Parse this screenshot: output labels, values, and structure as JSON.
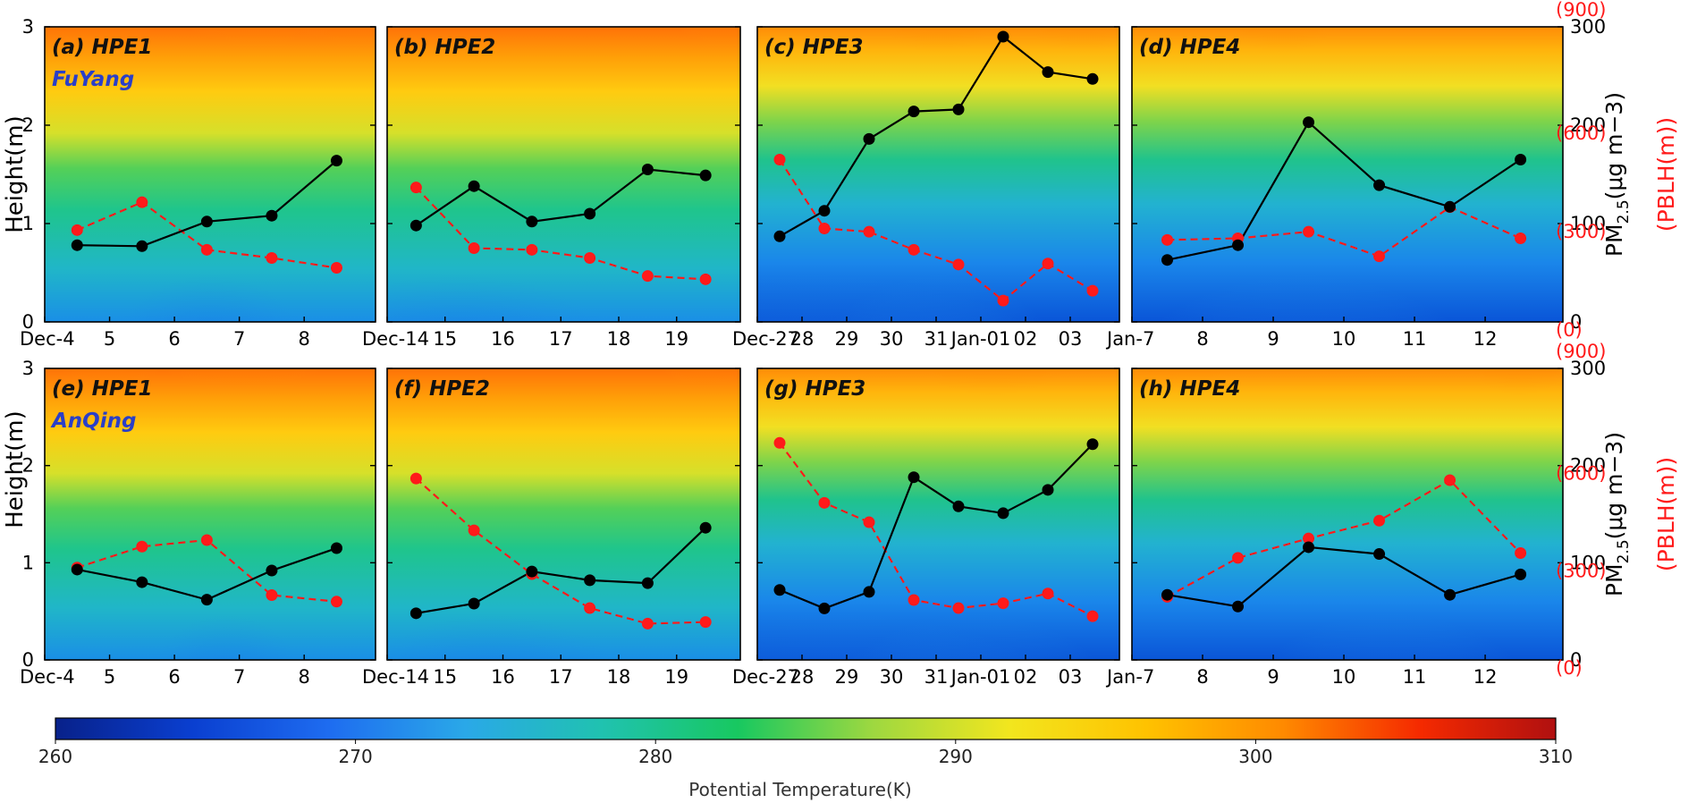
{
  "chart_data": {
    "type": "line",
    "colorbar": {
      "label": "Potential Temperature(K)",
      "min": 260,
      "max": 310,
      "ticks": [
        "260",
        "270",
        "280",
        "290",
        "300",
        "310"
      ],
      "colors": [
        "#08218a",
        "#0a3fd0",
        "#1e6cf0",
        "#2aa8e8",
        "#20c2b0",
        "#18c860",
        "#9ed840",
        "#f2e61e",
        "#ffc200",
        "#ff8a00",
        "#f52a00",
        "#b01010"
      ]
    },
    "left_axis": {
      "label": "Height(m)",
      "ticks": [
        "0",
        "1",
        "2",
        "3"
      ],
      "ylim": [
        0,
        3
      ]
    },
    "right_axis_pm": {
      "label": "PM2.5(μg m−3)",
      "ticks": [
        "0",
        "100",
        "200",
        "300"
      ],
      "ylim": [
        0,
        300
      ]
    },
    "right_axis_pblh": {
      "label": "(PBLH(m))",
      "ticks": [
        "(0)",
        "(300)",
        "(600)",
        "(900)"
      ],
      "ylim": [
        0,
        900
      ]
    },
    "series_styles": {
      "pm25": {
        "color": "#000000",
        "dash": "solid"
      },
      "pblh": {
        "color": "#ff1a1a",
        "dash": "dashed"
      }
    },
    "panels": [
      {
        "title": "(a) HPE1",
        "city": "FuYang",
        "row": 0,
        "col": 0,
        "xticks": [
          "Dec-4",
          "5",
          "6",
          "7",
          "8"
        ],
        "pm25": [
          78,
          77,
          102,
          108,
          164
        ],
        "pblh": [
          280,
          365,
          220,
          195,
          165
        ]
      },
      {
        "title": "(b) HPE2",
        "city": "",
        "row": 0,
        "col": 1,
        "xticks": [
          "Dec-14",
          "15",
          "16",
          "17",
          "18",
          "19"
        ],
        "pm25": [
          98,
          138,
          102,
          110,
          155,
          149
        ],
        "pblh": [
          410,
          225,
          220,
          195,
          140,
          130
        ]
      },
      {
        "title": "(c) HPE3",
        "city": "",
        "row": 0,
        "col": 2,
        "xticks": [
          "Dec-27",
          "28",
          "29",
          "30",
          "31",
          "Jan-01",
          "02",
          "03"
        ],
        "pm25": [
          87,
          113,
          186,
          214,
          216,
          290,
          254,
          247
        ],
        "pblh": [
          495,
          285,
          275,
          220,
          175,
          65,
          178,
          95
        ]
      },
      {
        "title": "(d) HPE4",
        "city": "",
        "row": 0,
        "col": 3,
        "xticks": [
          "Jan-7",
          "8",
          "9",
          "10",
          "11",
          "12"
        ],
        "pm25": [
          63,
          78,
          203,
          139,
          117,
          165
        ],
        "pblh": [
          250,
          255,
          275,
          200,
          350,
          255
        ]
      },
      {
        "title": "(e) HPE1",
        "city": "AnQing",
        "row": 1,
        "col": 0,
        "xticks": [
          "Dec-4",
          "5",
          "6",
          "7",
          "8"
        ],
        "pm25": [
          93,
          80,
          62,
          92,
          115
        ],
        "pblh": [
          285,
          350,
          370,
          200,
          180
        ]
      },
      {
        "title": "(f) HPE2",
        "city": "",
        "row": 1,
        "col": 1,
        "xticks": [
          "Dec-14",
          "15",
          "16",
          "17",
          "18",
          "19"
        ],
        "pm25": [
          48,
          58,
          91,
          82,
          79,
          136
        ],
        "pblh": [
          560,
          400,
          265,
          160,
          112,
          117
        ]
      },
      {
        "title": "(g) HPE3",
        "city": "",
        "row": 1,
        "col": 2,
        "xticks": [
          "Dec-27",
          "28",
          "29",
          "30",
          "31",
          "Jan-01",
          "02",
          "03"
        ],
        "pm25": [
          72,
          53,
          70,
          188,
          158,
          151,
          175,
          222
        ],
        "pblh": [
          670,
          485,
          425,
          185,
          160,
          175,
          205,
          135
        ]
      },
      {
        "title": "(h) HPE4",
        "city": "",
        "row": 1,
        "col": 3,
        "xticks": [
          "Jan-7",
          "8",
          "9",
          "10",
          "11",
          "12"
        ],
        "pm25": [
          67,
          55,
          116,
          109,
          67,
          88
        ],
        "pblh": [
          195,
          315,
          375,
          430,
          555,
          330
        ]
      }
    ]
  }
}
